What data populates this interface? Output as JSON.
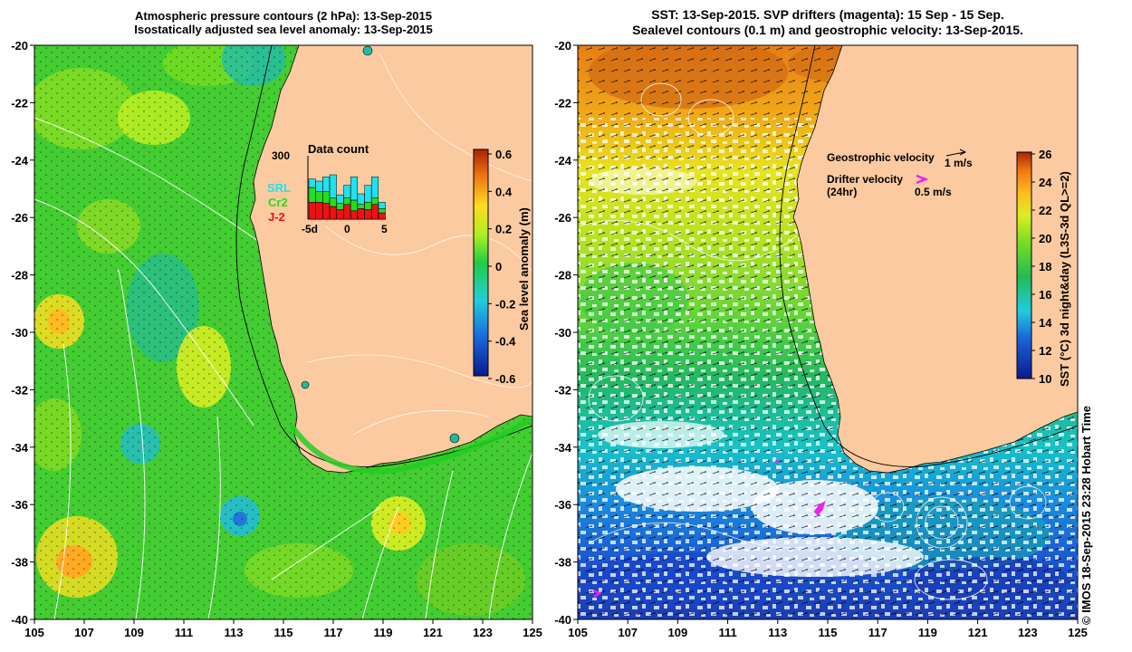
{
  "left_panel": {
    "title_line1": "Atmospheric pressure contours (2 hPa): 13-Sep-2015",
    "title_line2": "Isostatically adjusted sea level anomaly: 13-Sep-2015",
    "x_ticks": [
      "105",
      "107",
      "109",
      "111",
      "113",
      "115",
      "117",
      "119",
      "121",
      "123",
      "125"
    ],
    "y_ticks": [
      "-20",
      "-22",
      "-24",
      "-26",
      "-28",
      "-30",
      "-32",
      "-34",
      "-36",
      "-38",
      "-40"
    ],
    "colorbar": {
      "label": "Sea level anomaly (m)",
      "ticks": [
        "0.6",
        "0.4",
        "0.2",
        "0",
        "-0.2",
        "-0.4",
        "-0.6"
      ],
      "range": [
        -0.6,
        0.6
      ]
    },
    "inset": {
      "title": "Data count",
      "y_max_label": "300",
      "x_ticks": [
        "-5d",
        "0",
        "5"
      ],
      "legend": [
        {
          "name": "SRL",
          "color": "#22e0ee"
        },
        {
          "name": "Cr2",
          "color": "#22dd22"
        },
        {
          "name": "J-2",
          "color": "#ee1111"
        }
      ],
      "bars": [
        {
          "j2": 80,
          "cr2": 70,
          "srl": 40
        },
        {
          "j2": 80,
          "cr2": 50,
          "srl": 50
        },
        {
          "j2": 75,
          "cr2": 55,
          "srl": 70
        },
        {
          "j2": 60,
          "cr2": 40,
          "srl": 110
        },
        {
          "j2": 45,
          "cr2": 30,
          "srl": 40
        },
        {
          "j2": 70,
          "cr2": 30,
          "srl": 60
        },
        {
          "j2": 40,
          "cr2": 50,
          "srl": 110
        },
        {
          "j2": 50,
          "cr2": 20,
          "srl": 50
        },
        {
          "j2": 45,
          "cr2": 35,
          "srl": 80
        },
        {
          "j2": 70,
          "cr2": 30,
          "srl": 100
        },
        {
          "j2": 30,
          "cr2": 20,
          "srl": 30
        }
      ]
    }
  },
  "right_panel": {
    "title_line1": "SST: 13-Sep-2015. SVP drifters (magenta): 15 Sep - 15 Sep.",
    "title_line2": "Sealevel contours (0.1 m) and geostrophic velocity: 13-Sep-2015.",
    "x_ticks": [
      "105",
      "107",
      "109",
      "111",
      "113",
      "115",
      "117",
      "119",
      "121",
      "123",
      "125"
    ],
    "y_ticks": [
      "-20",
      "-22",
      "-24",
      "-26",
      "-28",
      "-30",
      "-32",
      "-34",
      "-36",
      "-38",
      "-40"
    ],
    "colorbar": {
      "label": "SST (°C) 3d night&day (L3S-3d QL>=2)",
      "ticks": [
        "26",
        "24",
        "22",
        "20",
        "18",
        "16",
        "14",
        "12",
        "10"
      ],
      "range": [
        10,
        26
      ]
    },
    "legend": {
      "geo_label": "Geostrophic velocity",
      "geo_scale": "1 m/s",
      "drifter_label": "Drifter velocity",
      "drifter_sub": "(24hr)",
      "drifter_scale": "0.5 m/s"
    }
  },
  "credit": "© IMOS 18-Sep-2015 23:28 Hobart Time"
}
